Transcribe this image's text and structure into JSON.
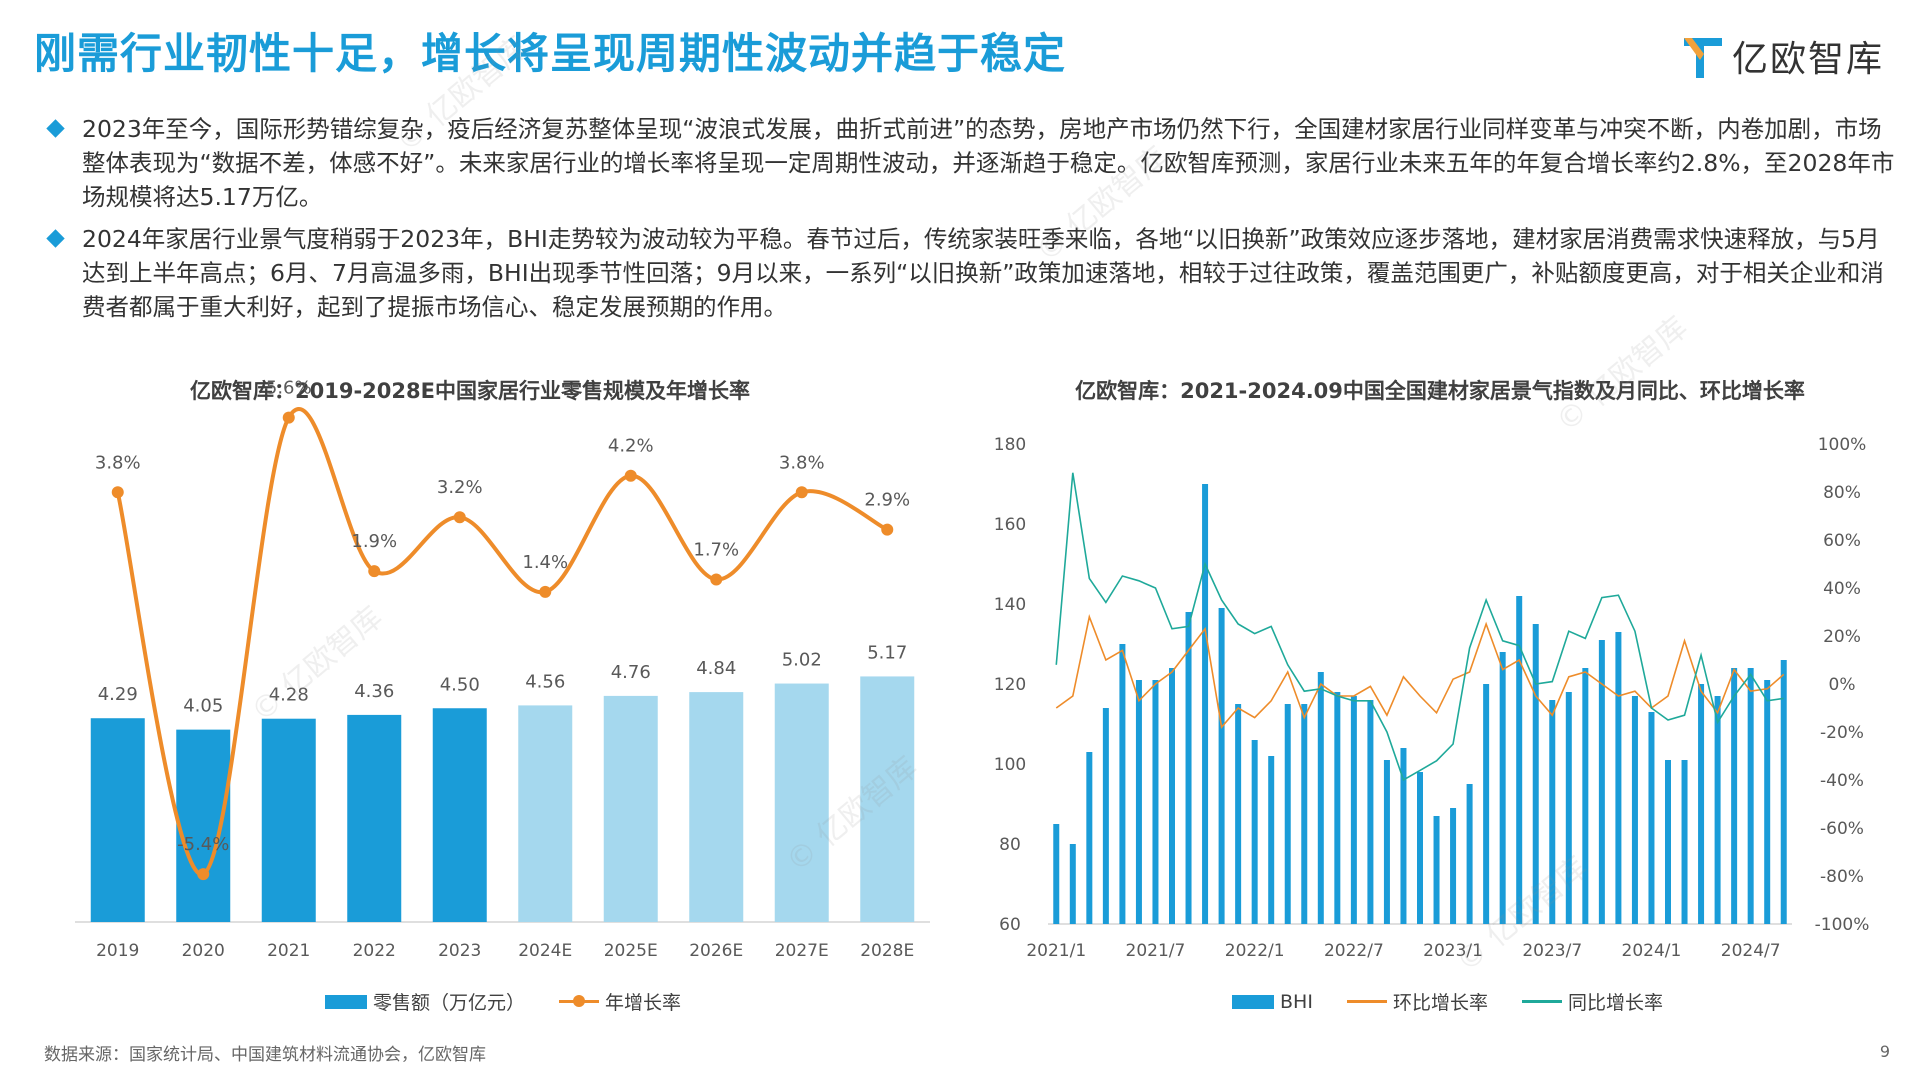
{
  "page": {
    "title": "刚需行业韧性十足，增长将呈现周期性波动并趋于稳定",
    "logo_text": "亿欧智库",
    "page_number": "9",
    "source": "数据来源：国家统计局、中国建筑材料流通协会，亿欧智库",
    "watermark": "© 亿欧智库",
    "accent_color": "#1a9cd8"
  },
  "bullets": [
    "2023年至今，国际形势错综复杂，疫后经济复苏整体呈现“波浪式发展，曲折式前进”的态势，房地产市场仍然下行，全国建材家居行业同样变革与冲突不断，内卷加剧，市场整体表现为“数据不差，体感不好”。未来家居行业的增长率将呈现一定周期性波动，并逐渐趋于稳定。亿欧智库预测，家居行业未来五年的年复合增长率约2.8%，至2028年市场规模将达5.17万亿。",
    "2024年家居行业景气度稍弱于2023年，BHI走势较为波动较为平稳。春节过后，传统家装旺季来临，各地“以旧换新”政策效应逐步落地，建材家居消费需求快速释放，与5月达到上半年高点；6月、7月高温多雨，BHI出现季节性回落；9月以来，一系列“以旧换新”政策加速落地，相较于过往政策，覆盖范围更广，补贴额度更高，对于相关企业和消费者都属于重大利好，起到了提振市场信心、稳定发展预期的作用。"
  ],
  "chart_data": [
    {
      "type": "bar",
      "title": "亿欧智库：2019-2028E中国家居行业零售规模及年增长率",
      "categories": [
        "2019",
        "2020",
        "2021",
        "2022",
        "2023",
        "2024E",
        "2025E",
        "2026E",
        "2027E",
        "2028E"
      ],
      "series": [
        {
          "name": "零售额（万亿元）",
          "type": "bar",
          "values": [
            4.29,
            4.05,
            4.28,
            4.36,
            4.5,
            4.56,
            4.76,
            4.84,
            5.02,
            5.17
          ],
          "labels": [
            "4.29",
            "4.05",
            "4.28",
            "4.36",
            "4.50",
            "4.56",
            "4.76",
            "4.84",
            "5.02",
            "5.17"
          ],
          "color_actual": "#1a9cd8",
          "color_forecast": "#a5d8ee"
        },
        {
          "name": "年增长率",
          "type": "line",
          "values": [
            3.8,
            -5.4,
            5.6,
            1.9,
            3.2,
            1.4,
            4.2,
            1.7,
            3.8,
            2.9
          ],
          "labels": [
            "3.8%",
            "-5.4%",
            "5.6%",
            "1.9%",
            "3.2%",
            "1.4%",
            "4.2%",
            "1.7%",
            "3.8%",
            "2.9%"
          ],
          "color": "#ee8c2a"
        }
      ],
      "legend": "bottom"
    },
    {
      "type": "bar",
      "title": "亿欧智库：2021-2024.09中国全国建材家居景气指数及月同比、环比增长率",
      "x_tick_labels": [
        "2021/1",
        "2021/7",
        "2022/1",
        "2022/7",
        "2023/1",
        "2023/7",
        "2024/1",
        "2024/7"
      ],
      "y_left": {
        "ticks": [
          "180",
          "160",
          "140",
          "120",
          "100",
          "80",
          "60"
        ],
        "range": [
          60,
          180
        ]
      },
      "y_right": {
        "ticks": [
          "100%",
          "80%",
          "60%",
          "40%",
          "20%",
          "0%",
          "-20%",
          "-40%",
          "-60%",
          "-80%",
          "-100%"
        ],
        "range": [
          -100,
          100
        ]
      },
      "months": [
        "2021/1",
        "2021/2",
        "2021/3",
        "2021/4",
        "2021/5",
        "2021/6",
        "2021/7",
        "2021/8",
        "2021/9",
        "2021/10",
        "2021/11",
        "2021/12",
        "2022/1",
        "2022/2",
        "2022/3",
        "2022/4",
        "2022/5",
        "2022/6",
        "2022/7",
        "2022/8",
        "2022/9",
        "2022/10",
        "2022/11",
        "2022/12",
        "2023/1",
        "2023/2",
        "2023/3",
        "2023/4",
        "2023/5",
        "2023/6",
        "2023/7",
        "2023/8",
        "2023/9",
        "2023/10",
        "2023/11",
        "2023/12",
        "2024/1",
        "2024/2",
        "2024/3",
        "2024/4",
        "2024/5",
        "2024/6",
        "2024/7",
        "2024/8",
        "2024/9"
      ],
      "series": [
        {
          "name": "BHI",
          "type": "bar",
          "color": "#1a9cd8",
          "values": [
            85,
            80,
            103,
            114,
            130,
            121,
            121,
            124,
            138,
            170,
            139,
            115,
            106,
            102,
            115,
            115,
            123,
            118,
            117,
            116,
            101,
            104,
            98,
            87,
            89,
            95,
            120,
            128,
            142,
            135,
            116,
            118,
            124,
            131,
            133,
            117,
            113,
            101,
            101,
            120,
            117,
            124,
            124,
            121,
            126
          ]
        },
        {
          "name": "环比增长率",
          "type": "line",
          "color": "#ee8c2a",
          "values": [
            -10,
            -5,
            28,
            10,
            14,
            -7,
            0,
            5,
            14,
            23,
            -18,
            -10,
            -14,
            -7,
            5,
            -14,
            0,
            -5,
            -5,
            -1,
            -13,
            3,
            -5,
            -12,
            2,
            5,
            25,
            6,
            10,
            -5,
            -13,
            3,
            5,
            0,
            -5,
            -3,
            -10,
            -5,
            18,
            -3,
            -12,
            6,
            -3,
            -2,
            4
          ]
        },
        {
          "name": "同比增长率",
          "type": "line",
          "color": "#1fa99a",
          "values": [
            8,
            88,
            44,
            34,
            45,
            43,
            40,
            23,
            24,
            50,
            35,
            25,
            21,
            24,
            8,
            -3,
            -2,
            -5,
            -7,
            -7,
            -20,
            -40,
            -36,
            -32,
            -25,
            15,
            35,
            18,
            16,
            0,
            1,
            22,
            19,
            36,
            37,
            22,
            -10,
            -15,
            -13,
            12,
            -16,
            -5,
            4,
            -7,
            -6
          ]
        }
      ],
      "legend": "bottom"
    }
  ]
}
